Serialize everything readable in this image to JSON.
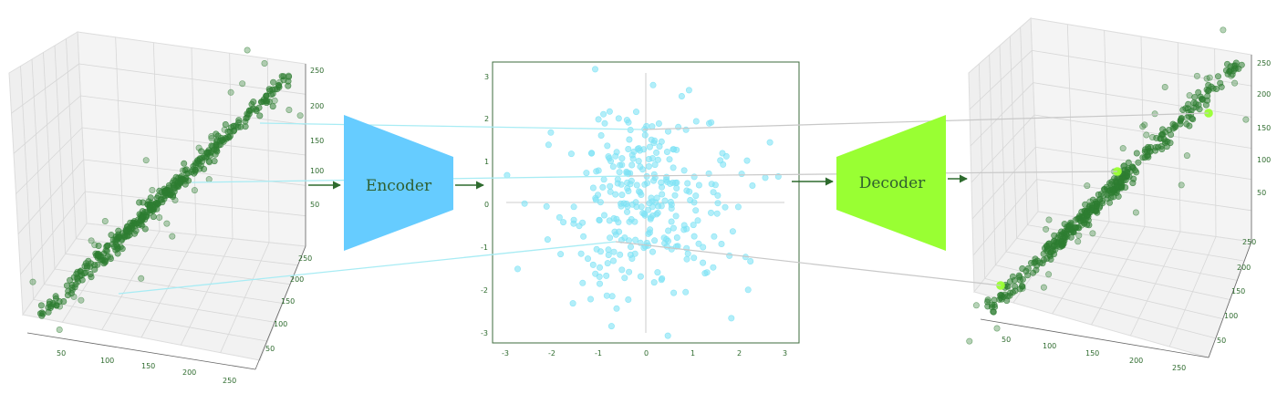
{
  "encoder": {
    "label": "Encoder",
    "color": "#66ccff"
  },
  "decoder": {
    "label": "Decoder",
    "color": "#99ff33"
  },
  "colors": {
    "points_3d": "#2e7d32",
    "points_latent": "#7ee3f5",
    "highlight_out": "#99ff33",
    "arrow": "#2e6b2e",
    "link_in": "#a8ecf4",
    "link_out": "#c8c8c8"
  },
  "left_plot": {
    "z_ticks": [
      "250",
      "200",
      "150",
      "100",
      "50"
    ],
    "x_ticks": [
      "50",
      "100",
      "150",
      "200",
      "250"
    ],
    "y_ticks": [
      "250",
      "200",
      "150",
      "100",
      "50"
    ]
  },
  "latent_plot": {
    "x_ticks": [
      "-3",
      "-2",
      "-1",
      "0",
      "1",
      "2",
      "3"
    ],
    "y_ticks": [
      "3",
      "2",
      "1",
      "0",
      "-1",
      "-2",
      "-3"
    ]
  },
  "right_plot": {
    "z_ticks": [
      "250",
      "200",
      "150",
      "100",
      "50"
    ],
    "x_ticks": [
      "50",
      "100",
      "150",
      "200",
      "250"
    ],
    "y_ticks": [
      "250",
      "200",
      "150",
      "100",
      "50"
    ]
  }
}
